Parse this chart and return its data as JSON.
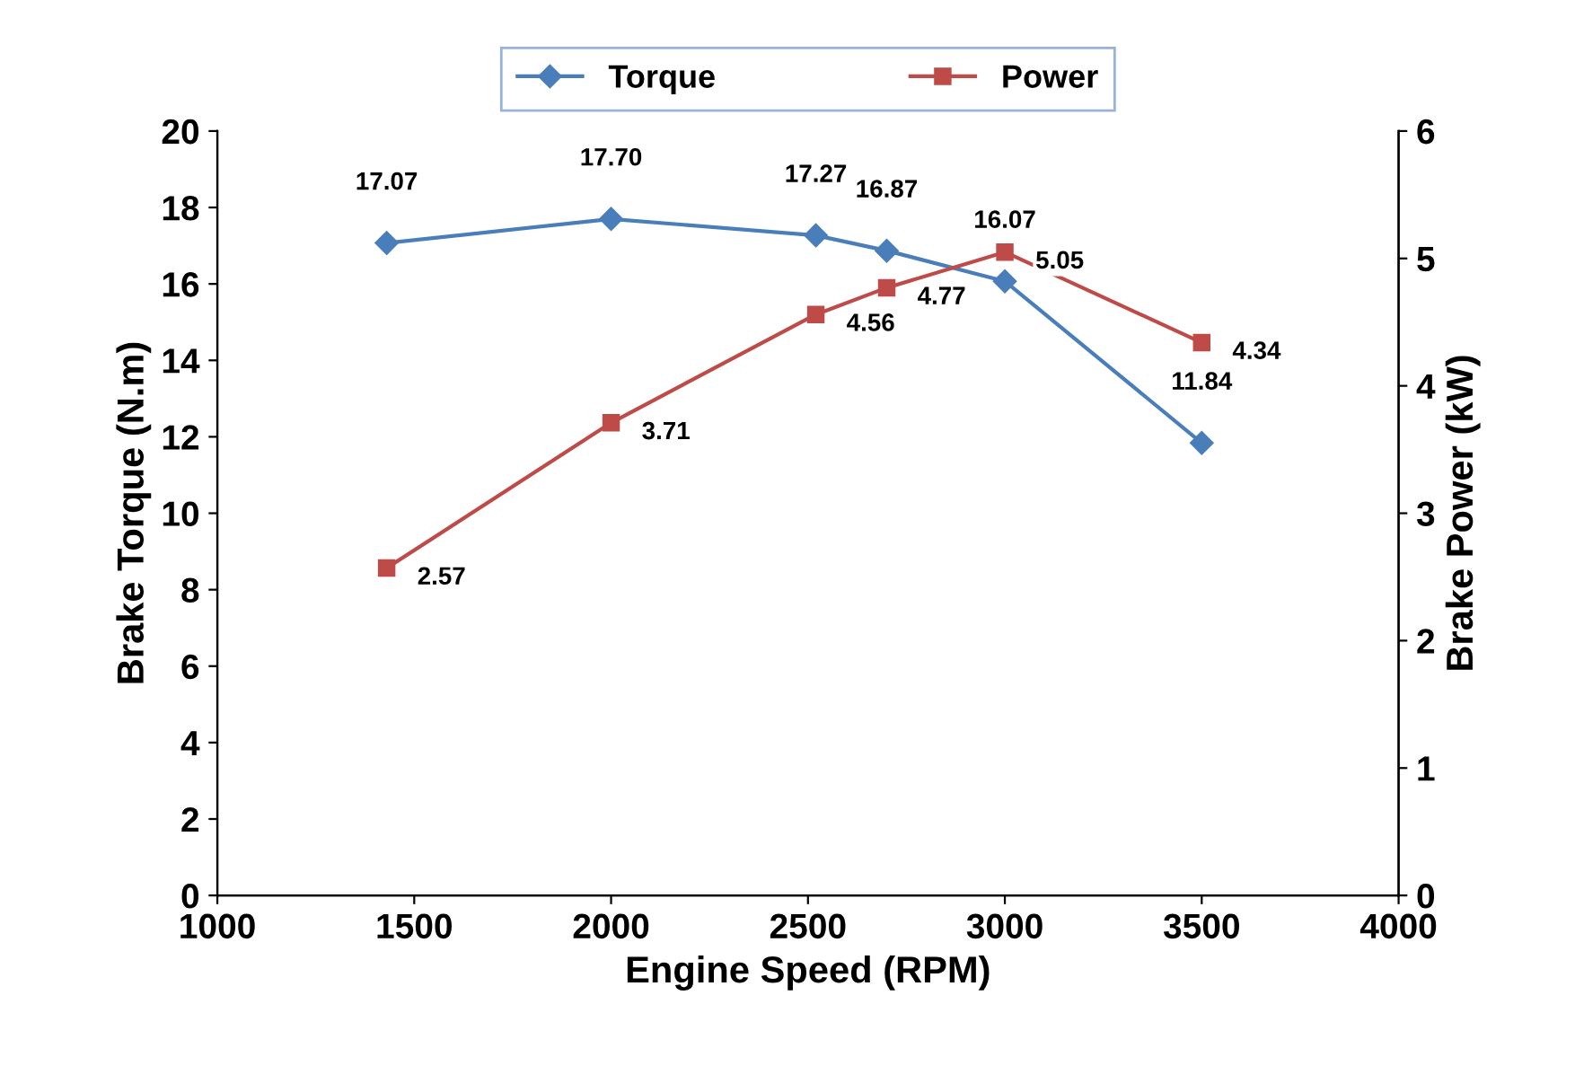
{
  "chart_data": {
    "type": "line",
    "xlabel": "Engine Speed (RPM)",
    "ylabel": "Brake Torque (N.m)",
    "y2label": "Brake Power (kW)",
    "x": [
      1430,
      2000,
      2520,
      2700,
      3000,
      3500
    ],
    "series": [
      {
        "name": "Torque",
        "color": "#4a7ebb",
        "marker": "diamond",
        "values": [
          17.07,
          17.7,
          17.27,
          16.87,
          16.07,
          11.84
        ],
        "value_labels": [
          "17.07",
          "17.70",
          "17.27",
          "16.87",
          "16.07",
          "11.84"
        ]
      },
      {
        "name": "Power",
        "color": "#be4b48",
        "marker": "square",
        "axis": "y2",
        "values": [
          2.57,
          3.71,
          4.56,
          4.77,
          5.05,
          4.34
        ],
        "value_labels": [
          "2.57",
          "3.71",
          "4.56",
          "4.77",
          "5.05",
          "4.34"
        ]
      }
    ],
    "xlim": [
      1000,
      4000
    ],
    "xticks": [
      1000,
      1500,
      2000,
      2500,
      3000,
      3500,
      4000
    ],
    "ylim": [
      0,
      20
    ],
    "yticks": [
      0,
      2,
      4,
      6,
      8,
      10,
      12,
      14,
      16,
      18,
      20
    ],
    "y2lim": [
      0,
      6
    ],
    "y2ticks": [
      0,
      1,
      2,
      3,
      4,
      5,
      6
    ],
    "data_labels": true,
    "legend": "top",
    "grid": false,
    "line_style": "solid"
  }
}
